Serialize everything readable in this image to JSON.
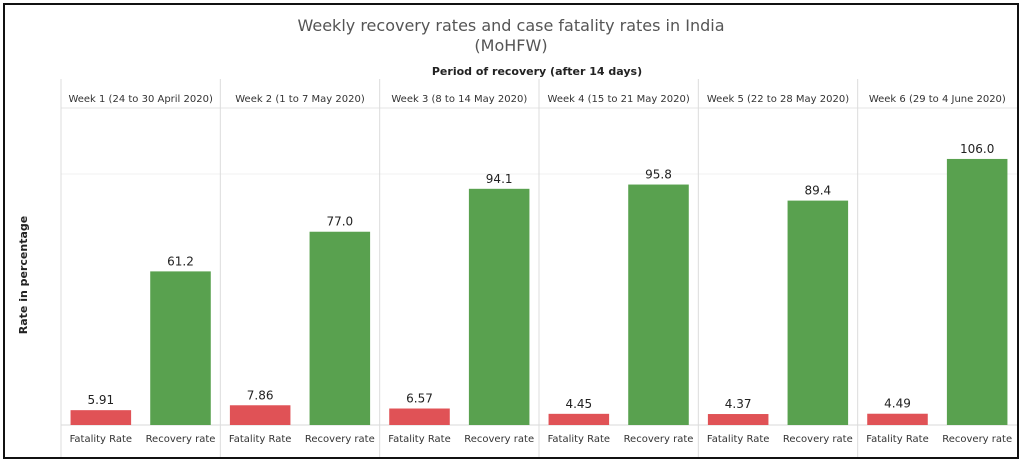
{
  "chart_data": {
    "type": "bar",
    "title_line1": "Weekly recovery rates and case fatality rates in India",
    "title_line2": "(MoHFW)",
    "column_header": "Period of recovery (after 14 days)",
    "ylabel": "Rate in percentage",
    "ylim": [
      0,
      115
    ],
    "categories": [
      "Fatality Rate",
      "Recovery rate"
    ],
    "colors": {
      "fatality": "#e05256",
      "recovery": "#59a14f"
    },
    "weeks": [
      {
        "label": "Week 1 (24 to 30 April 2020)",
        "fatality": 5.91,
        "fatality_label": "5.91",
        "recovery": 61.2,
        "recovery_label": "61.2"
      },
      {
        "label": "Week 2 (1 to 7 May 2020)",
        "fatality": 7.86,
        "fatality_label": "7.86",
        "recovery": 77.0,
        "recovery_label": "77.0"
      },
      {
        "label": "Week 3 (8 to 14 May 2020)",
        "fatality": 6.57,
        "fatality_label": "6.57",
        "recovery": 94.1,
        "recovery_label": "94.1"
      },
      {
        "label": "Week 4 (15 to 21 May 2020)",
        "fatality": 4.45,
        "fatality_label": "4.45",
        "recovery": 95.8,
        "recovery_label": "95.8"
      },
      {
        "label": "Week 5 (22 to 28 May 2020)",
        "fatality": 4.37,
        "fatality_label": "4.37",
        "recovery": 89.4,
        "recovery_label": "89.4"
      },
      {
        "label": "Week 6 (29 to 4 June 2020)",
        "fatality": 4.49,
        "fatality_label": "4.49",
        "recovery": 106.0,
        "recovery_label": "106.0"
      }
    ]
  }
}
